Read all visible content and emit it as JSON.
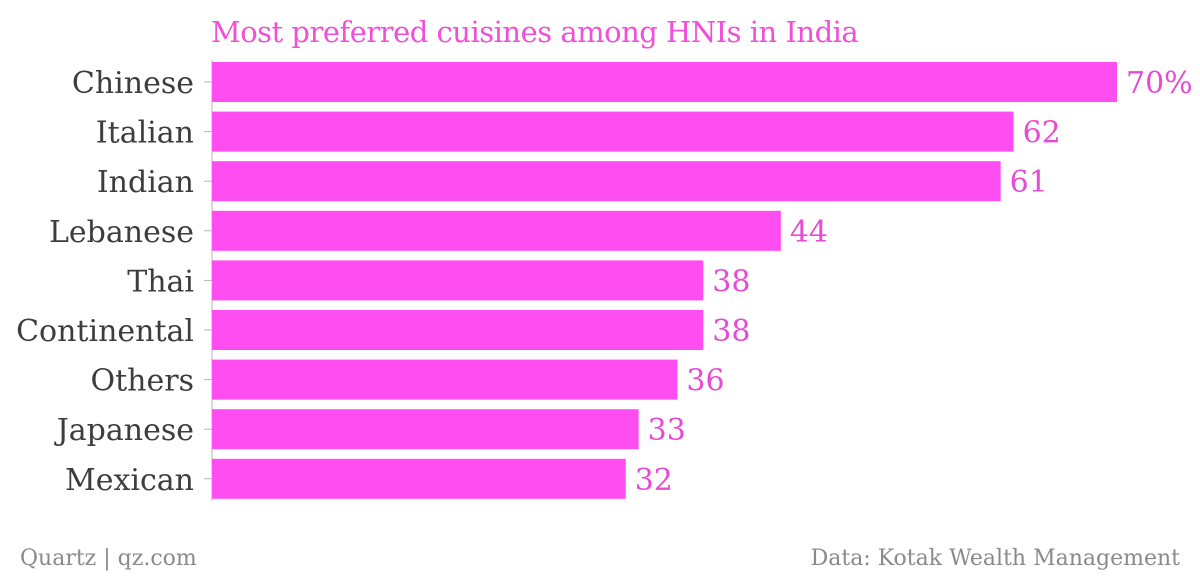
{
  "chart_data": {
    "type": "bar",
    "orientation": "horizontal",
    "title": "Most preferred cuisines among HNIs in India",
    "categories": [
      "Chinese",
      "Italian",
      "Indian",
      "Lebanese",
      "Thai",
      "Continental",
      "Others",
      "Japanese",
      "Mexican"
    ],
    "values": [
      70,
      62,
      61,
      44,
      38,
      38,
      36,
      33,
      32
    ],
    "value_labels": [
      "70%",
      "62",
      "61",
      "44",
      "38",
      "38",
      "36",
      "33",
      "32"
    ],
    "unit": "%",
    "xlim": [
      0,
      70
    ],
    "grid": false,
    "legend": "none",
    "bar_color": "#ff4df2",
    "title_color": "#f04fd8",
    "label_color": "#e64bd3",
    "category_color": "#3d3d3d",
    "tick_color": "#b5b5b5"
  },
  "footer": {
    "source_left": "Quartz | qz.com",
    "source_right": "Data: Kotak Wealth Management"
  }
}
